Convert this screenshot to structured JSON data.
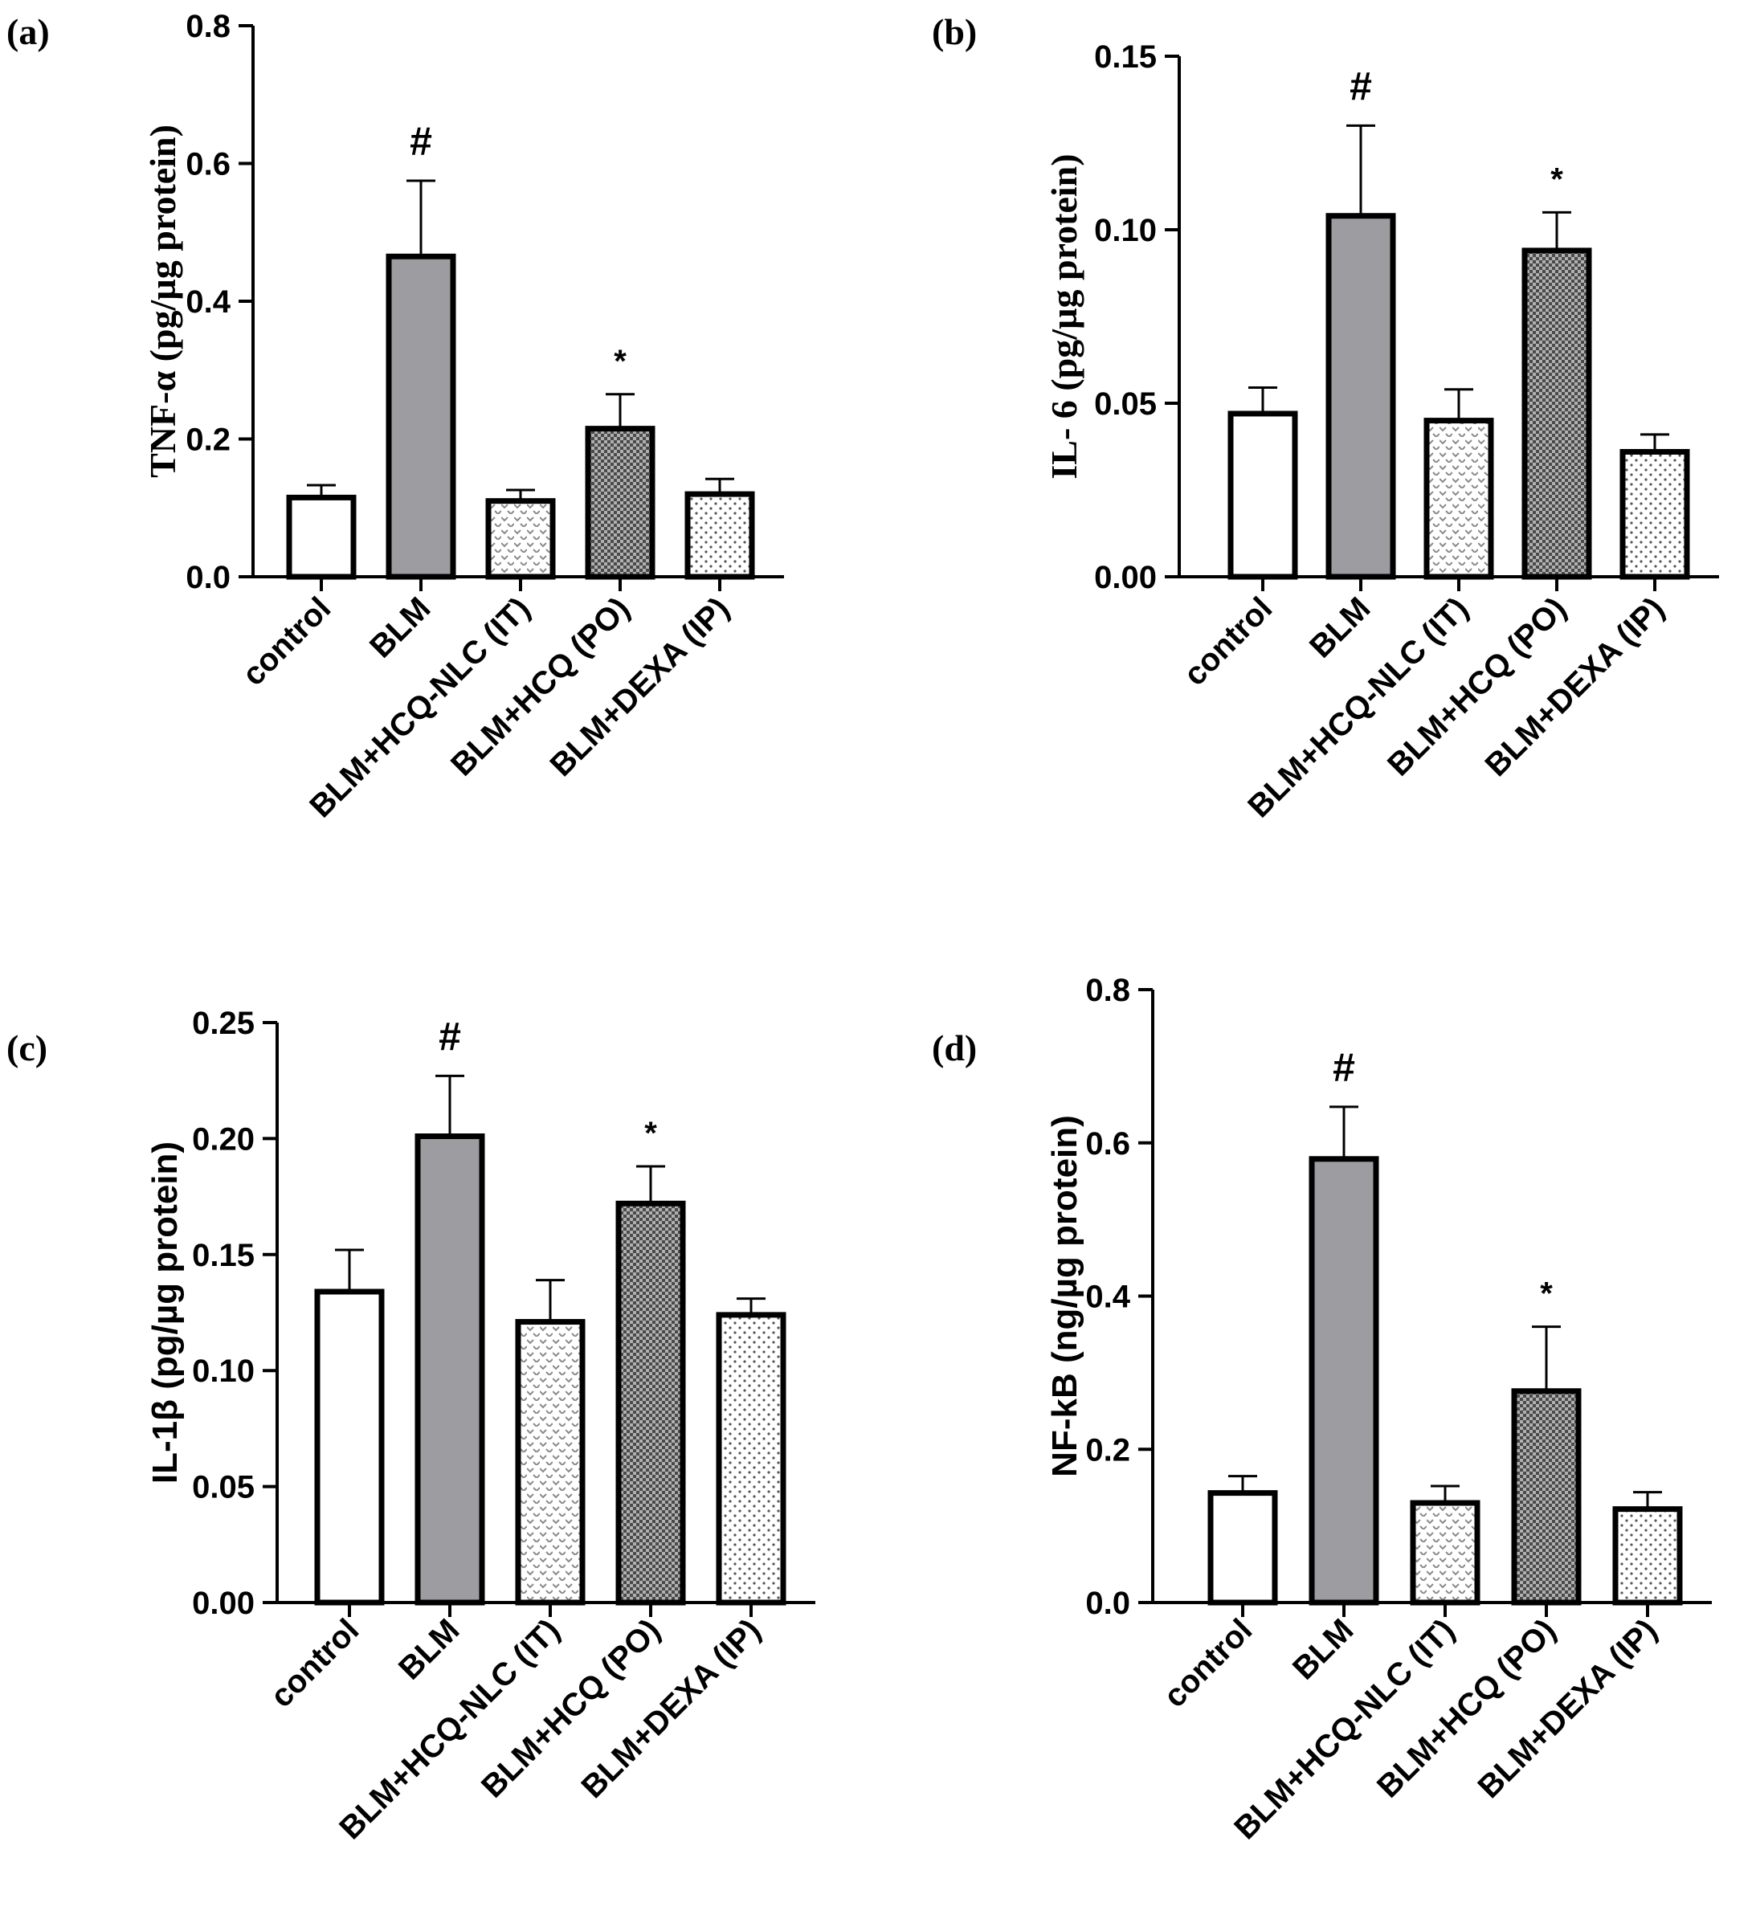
{
  "chart_data": [
    {
      "type": "bar",
      "panel": "(a)",
      "ylabel": "TNF-α (pg/µg protein)",
      "ylabel_style": "serif",
      "ylim": [
        0,
        0.8
      ],
      "yticks": [
        "0.0",
        "0.2",
        "0.4",
        "0.6",
        "0.8"
      ],
      "categories": [
        "control",
        "BLM",
        "BLM+HCQ-NLC (IT)",
        "BLM+HCQ (PO)",
        "BLM+DEXA (IP)"
      ],
      "values": [
        0.115,
        0.465,
        0.11,
        0.215,
        0.12
      ],
      "errors": [
        0.018,
        0.11,
        0.016,
        0.05,
        0.022
      ],
      "annotations": [
        "",
        "#",
        "",
        "*",
        ""
      ]
    },
    {
      "type": "bar",
      "panel": "(b)",
      "ylabel": "IL- 6 (pg/µg protein)",
      "ylabel_style": "serif",
      "ylim": [
        0,
        0.15
      ],
      "yticks": [
        "0.00",
        "0.05",
        "0.10",
        "0.15"
      ],
      "categories": [
        "control",
        "BLM",
        "BLM+HCQ-NLC (IT)",
        "BLM+HCQ (PO)",
        "BLM+DEXA (IP)"
      ],
      "values": [
        0.047,
        0.104,
        0.045,
        0.094,
        0.036
      ],
      "errors": [
        0.0075,
        0.026,
        0.009,
        0.011,
        0.005
      ],
      "annotations": [
        "",
        "#",
        "",
        "*",
        ""
      ]
    },
    {
      "type": "bar",
      "panel": "(c)",
      "ylabel": "IL-1β (pg/µg protein)",
      "ylabel_style": "sans",
      "ylim": [
        0,
        0.25
      ],
      "yticks": [
        "0.00",
        "0.05",
        "0.10",
        "0.15",
        "0.20",
        "0.25"
      ],
      "categories": [
        "control",
        "BLM",
        "BLM+HCQ-NLC (IT)",
        "BLM+HCQ (PO)",
        "BLM+DEXA (IP)"
      ],
      "values": [
        0.134,
        0.201,
        0.121,
        0.172,
        0.124
      ],
      "errors": [
        0.018,
        0.026,
        0.018,
        0.016,
        0.007
      ],
      "annotations": [
        "",
        "#",
        "",
        "*",
        ""
      ]
    },
    {
      "type": "bar",
      "panel": "(d)",
      "ylabel": "NF-kB (ng/µg protein)",
      "ylabel_style": "sans",
      "ylim": [
        0,
        0.8
      ],
      "yticks": [
        "0.0",
        "0.2",
        "0.4",
        "0.6",
        "0.8"
      ],
      "categories": [
        "control",
        "BLM",
        "BLM+HCQ-NLC (IT)",
        "BLM+HCQ (PO)",
        "BLM+DEXA (IP)"
      ],
      "values": [
        0.143,
        0.579,
        0.13,
        0.276,
        0.122
      ],
      "errors": [
        0.022,
        0.068,
        0.022,
        0.084,
        0.022
      ],
      "annotations": [
        "",
        "#",
        "",
        "*",
        ""
      ]
    }
  ],
  "colors": {
    "bar_stroke": "#000000",
    "control_fill": "#ffffff",
    "blm_fill": "#9d9da1",
    "pattern_dark": "#7a7a7a",
    "pattern_light": "#9a9a9a"
  }
}
